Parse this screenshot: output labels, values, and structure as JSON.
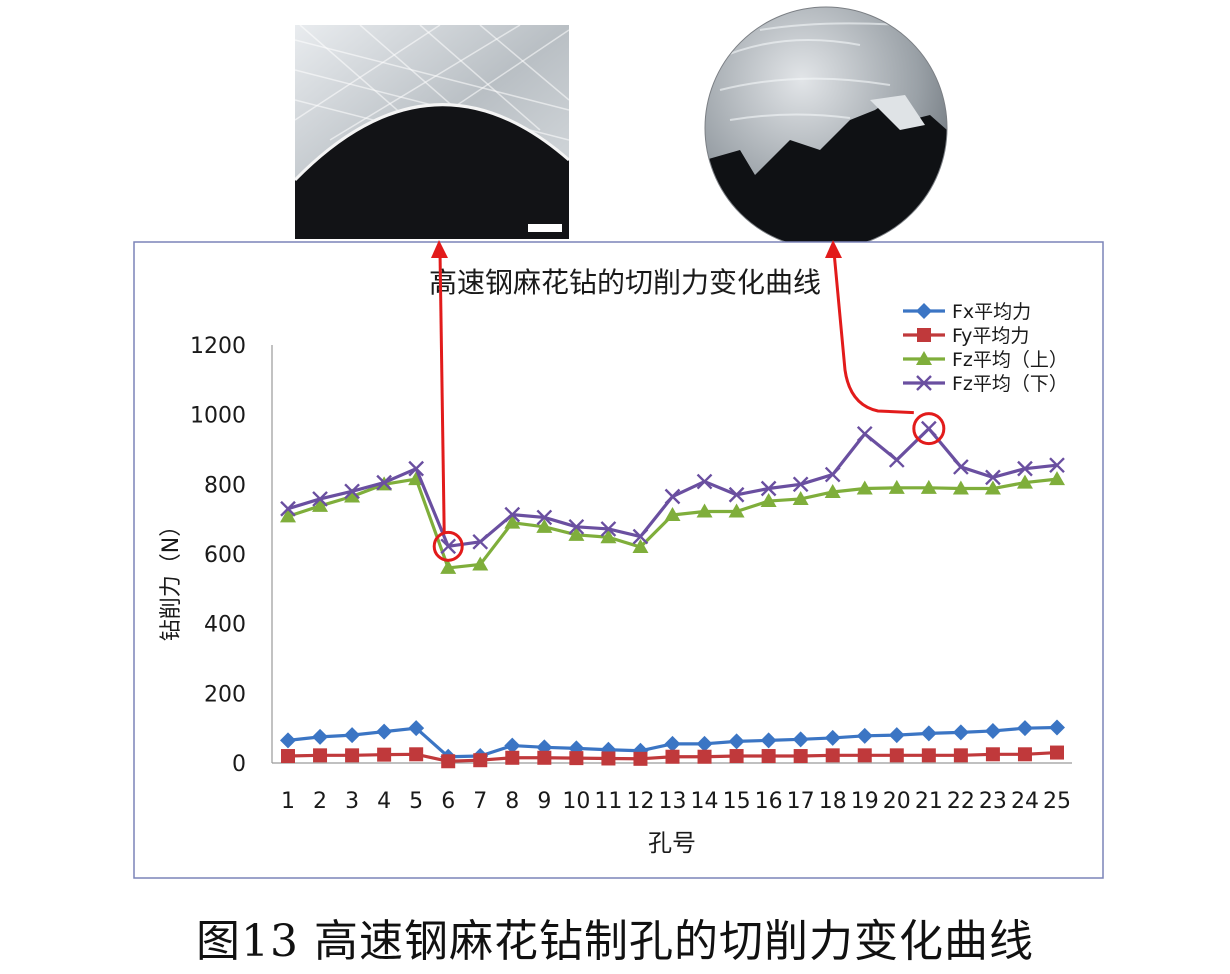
{
  "caption": "图13   高速钢麻花钻制孔的切削力变化曲线",
  "photos": [
    {
      "name": "hole-edge-micrograph-photo",
      "kind": "rect"
    },
    {
      "name": "hole-edge-burr-micrograph-photo",
      "kind": "circle"
    }
  ],
  "chart_data": {
    "type": "line",
    "title": "高速钢麻花钻的切削力变化曲线",
    "xlabel": "孔号",
    "ylabel": "钻削力（N）",
    "ylim": [
      0,
      1200
    ],
    "yticks": [
      0,
      200,
      400,
      600,
      800,
      1000,
      1200
    ],
    "grid": false,
    "legend_position": "top-right",
    "categories": [
      "1",
      "2",
      "3",
      "4",
      "5",
      "6",
      "7",
      "8",
      "9",
      "10",
      "11",
      "12",
      "13",
      "14",
      "15",
      "16",
      "17",
      "18",
      "19",
      "20",
      "21",
      "22",
      "23",
      "24",
      "25"
    ],
    "series": [
      {
        "name": "Fx平均力",
        "color": "#3b75c4",
        "marker": "diamond",
        "values": [
          65,
          75,
          80,
          90,
          100,
          18,
          20,
          50,
          45,
          42,
          38,
          35,
          55,
          55,
          62,
          65,
          68,
          72,
          78,
          80,
          85,
          88,
          92,
          100,
          102
        ]
      },
      {
        "name": "Fy平均力",
        "color": "#c0393b",
        "marker": "square",
        "values": [
          20,
          22,
          22,
          24,
          25,
          5,
          8,
          15,
          15,
          14,
          13,
          12,
          18,
          18,
          20,
          20,
          20,
          22,
          22,
          22,
          22,
          22,
          25,
          25,
          30
        ]
      },
      {
        "name": "Fz平均（上）",
        "color": "#7fae3b",
        "marker": "triangle",
        "values": [
          708,
          738,
          765,
          800,
          815,
          560,
          570,
          690,
          678,
          655,
          648,
          620,
          712,
          722,
          722,
          752,
          758,
          778,
          788,
          790,
          790,
          788,
          788,
          805,
          815
        ]
      },
      {
        "name": "Fz平均（下）",
        "color": "#6a4fa0",
        "marker": "x",
        "values": [
          730,
          758,
          780,
          805,
          845,
          622,
          635,
          713,
          705,
          678,
          672,
          650,
          765,
          808,
          770,
          788,
          800,
          828,
          945,
          870,
          960,
          850,
          820,
          845,
          855
        ]
      }
    ],
    "annotations": [
      {
        "series": 3,
        "point_index": 5,
        "callout": "hole-edge-micrograph-photo"
      },
      {
        "series": 3,
        "point_index": 20,
        "callout": "hole-edge-burr-micrograph-photo"
      }
    ]
  }
}
